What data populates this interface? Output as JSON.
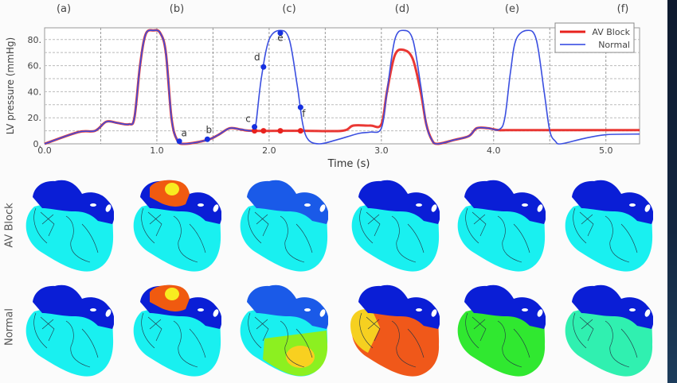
{
  "chart_data": {
    "type": "line",
    "xlabel": "Time (s)",
    "ylabel": "LV pressure (mmHg)",
    "xlim": [
      0,
      5.3
    ],
    "ylim": [
      0,
      89
    ],
    "xticks": [
      0,
      1,
      2,
      3,
      4,
      5
    ],
    "xtick_labels": [
      "0.0",
      "1.0",
      "2.0",
      "3.0",
      "4.0",
      "5.0"
    ],
    "yticks": [
      0,
      20,
      40,
      60,
      80
    ],
    "ytick_labels": [
      "0.",
      "20.",
      "40.",
      "60.",
      "80."
    ],
    "grid": true,
    "legend_position": "top-right",
    "series": [
      {
        "name": "AV Block",
        "color": "#e8221e",
        "x": [
          0,
          0.3,
          0.45,
          0.55,
          0.65,
          0.75,
          0.8,
          0.85,
          0.9,
          0.97,
          1.03,
          1.08,
          1.13,
          1.18,
          1.25,
          1.45,
          1.55,
          1.65,
          1.75,
          1.85,
          2.3,
          2.65,
          2.75,
          2.9,
          3.0,
          3.05,
          3.12,
          3.2,
          3.28,
          3.35,
          3.4,
          3.45,
          3.5,
          3.65,
          3.78,
          3.85,
          3.95,
          4.05,
          4.2,
          5.3
        ],
        "y": [
          0,
          9,
          10,
          17,
          16,
          15,
          20,
          60,
          84,
          87,
          85,
          70,
          20,
          3,
          0,
          3,
          7,
          12,
          11,
          10,
          10,
          10,
          14,
          14,
          15,
          40,
          68,
          72,
          65,
          40,
          15,
          3,
          0,
          3,
          6,
          12,
          12,
          10.5,
          10.5,
          10.5
        ]
      },
      {
        "name": "Normal",
        "color": "#3b4fe0",
        "x": [
          0,
          0.3,
          0.45,
          0.55,
          0.65,
          0.75,
          0.8,
          0.85,
          0.9,
          0.97,
          1.03,
          1.08,
          1.13,
          1.18,
          1.25,
          1.45,
          1.55,
          1.65,
          1.75,
          1.85,
          1.88,
          1.93,
          2.0,
          2.1,
          2.18,
          2.25,
          2.3,
          2.35,
          2.45,
          2.6,
          2.8,
          2.9,
          3.0,
          3.05,
          3.12,
          3.2,
          3.28,
          3.35,
          3.4,
          3.45,
          3.5,
          3.65,
          3.78,
          3.85,
          3.95,
          4.05,
          4.1,
          4.15,
          4.2,
          4.3,
          4.38,
          4.45,
          4.5,
          4.55,
          4.6,
          4.8,
          5.0,
          5.3
        ],
        "y": [
          0,
          9,
          10,
          17,
          16,
          15,
          20,
          60,
          84,
          87,
          85,
          70,
          20,
          3,
          0,
          3,
          7,
          12,
          11,
          10,
          14,
          50,
          80,
          87,
          80,
          45,
          15,
          3,
          0,
          3,
          8,
          9,
          12,
          40,
          80,
          87,
          80,
          45,
          15,
          3,
          0,
          3,
          6,
          12,
          12,
          11,
          20,
          55,
          80,
          87,
          80,
          40,
          10,
          2,
          0,
          4,
          7,
          7.5
        ]
      }
    ],
    "annotations": [
      {
        "label": "a",
        "x": 1.2,
        "y": 2
      },
      {
        "label": "b",
        "x": 1.45,
        "y": 3.5
      },
      {
        "label": "c",
        "x": 1.87,
        "y": 13
      },
      {
        "label": "d",
        "x": 1.95,
        "y": 59
      },
      {
        "label": "e",
        "x": 2.1,
        "y": 85
      },
      {
        "label": "f",
        "x": 2.28,
        "y": 28
      }
    ],
    "av_block_markers": {
      "x": [
        1.87,
        1.95,
        2.1,
        2.28
      ],
      "y": [
        10,
        10,
        10,
        10
      ]
    }
  },
  "panel_labels": [
    "(a)",
    "(b)",
    "(c)",
    "(d)",
    "(e)",
    "(f)"
  ],
  "row_labels": [
    "AV Block",
    "Normal"
  ],
  "heart_panels": [
    [
      {
        "atria": "#0a1ed6",
        "ventricle": "#19f0f0",
        "hot": null
      },
      {
        "atria": "#0a1ed6",
        "ventricle": "#19f0f0",
        "hot": "#f05a10"
      },
      {
        "atria": "#1a5ae8",
        "ventricle": "#19f0f0",
        "hot": null
      },
      {
        "atria": "#0a1ed6",
        "ventricle": "#19f0f0",
        "hot": null
      },
      {
        "atria": "#0a1ed6",
        "ventricle": "#19f0f0",
        "hot": null
      },
      {
        "atria": "#0a1ed6",
        "ventricle": "#19f0f0",
        "hot": null
      }
    ],
    [
      {
        "atria": "#0a1ed6",
        "ventricle": "#19f0f0",
        "hot": null
      },
      {
        "atria": "#0a1ed6",
        "ventricle": "#19f0f0",
        "hot": "#f05a10"
      },
      {
        "atria": "#1a5ae8",
        "ventricle": "#19f0f0",
        "lower": "#8cf020"
      },
      {
        "atria": "#0a1ed6",
        "ventricle": "#f0581a",
        "lower": "#f0581a"
      },
      {
        "atria": "#0a1ed6",
        "ventricle": "#30e830",
        "lower": "#30e830"
      },
      {
        "atria": "#0a1ed6",
        "ventricle": "#30f0b0",
        "lower": "#30f0b0"
      }
    ]
  ]
}
